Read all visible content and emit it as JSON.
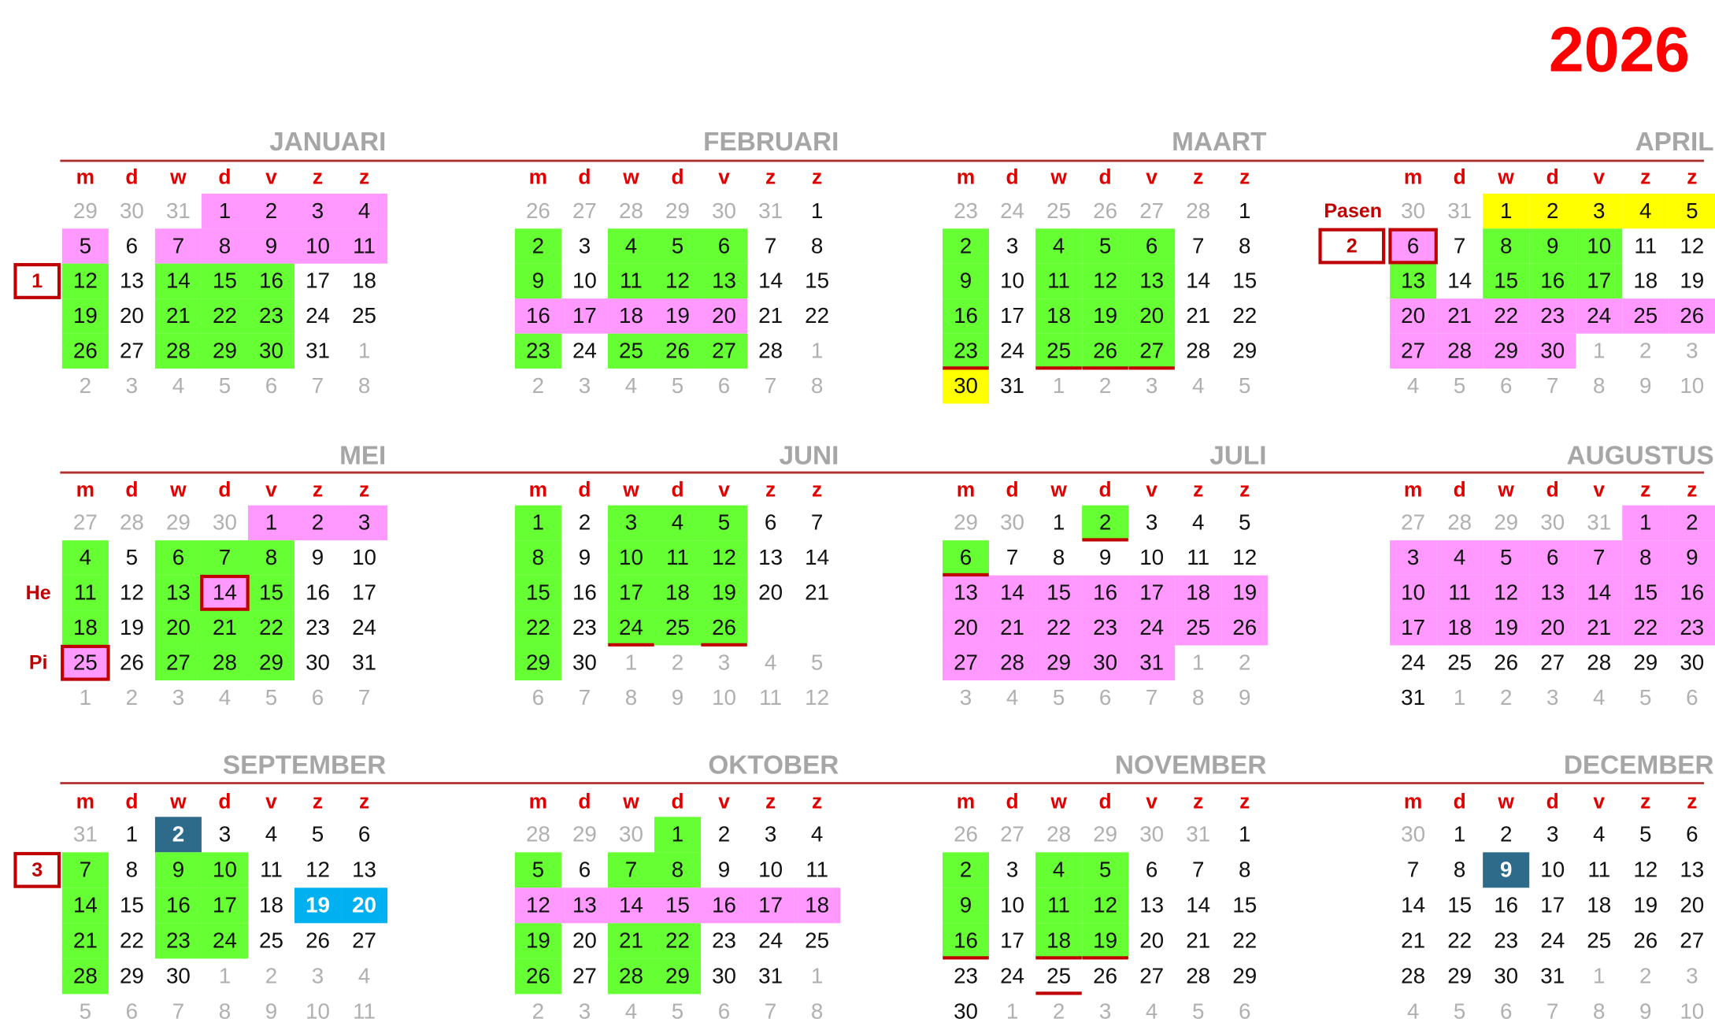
{
  "title": "2026",
  "weekdays": [
    "m",
    "d",
    "w",
    "d",
    "v",
    "z",
    "z"
  ],
  "months": [
    {
      "name": "JANUARI",
      "weeks": [
        [
          29,
          30,
          31,
          1,
          2,
          3,
          4
        ],
        [
          5,
          6,
          7,
          8,
          9,
          10,
          11
        ],
        [
          12,
          13,
          14,
          15,
          16,
          17,
          18
        ],
        [
          19,
          20,
          21,
          22,
          23,
          24,
          25
        ],
        [
          26,
          27,
          28,
          29,
          30,
          31,
          1
        ],
        [
          2,
          3,
          4,
          5,
          6,
          7,
          8
        ]
      ]
    },
    {
      "name": "FEBRUARI",
      "weeks": [
        [
          26,
          27,
          28,
          29,
          30,
          31,
          1
        ],
        [
          2,
          3,
          4,
          5,
          6,
          7,
          8
        ],
        [
          9,
          10,
          11,
          12,
          13,
          14,
          15
        ],
        [
          16,
          17,
          18,
          19,
          20,
          21,
          22
        ],
        [
          23,
          24,
          25,
          26,
          27,
          28,
          1
        ],
        [
          2,
          3,
          4,
          5,
          6,
          7,
          8
        ]
      ]
    },
    {
      "name": "MAART",
      "weeks": [
        [
          23,
          24,
          25,
          26,
          27,
          28,
          1
        ],
        [
          2,
          3,
          4,
          5,
          6,
          7,
          8
        ],
        [
          9,
          10,
          11,
          12,
          13,
          14,
          15
        ],
        [
          16,
          17,
          18,
          19,
          20,
          21,
          22
        ],
        [
          23,
          24,
          25,
          26,
          27,
          28,
          29
        ],
        [
          30,
          31,
          1,
          2,
          3,
          4,
          5
        ]
      ]
    },
    {
      "name": "APRIL",
      "weeks": [
        [
          30,
          31,
          1,
          2,
          3,
          4,
          5
        ],
        [
          6,
          7,
          8,
          9,
          10,
          11,
          12
        ],
        [
          13,
          14,
          15,
          16,
          17,
          18,
          19
        ],
        [
          20,
          21,
          22,
          23,
          24,
          25,
          26
        ],
        [
          27,
          28,
          29,
          30,
          1,
          2,
          3
        ],
        [
          4,
          5,
          6,
          7,
          8,
          9,
          10
        ]
      ]
    },
    {
      "name": "MEI",
      "weeks": [
        [
          27,
          28,
          29,
          30,
          1,
          2,
          3
        ],
        [
          4,
          5,
          6,
          7,
          8,
          9,
          10
        ],
        [
          11,
          12,
          13,
          14,
          15,
          16,
          17
        ],
        [
          18,
          19,
          20,
          21,
          22,
          23,
          24
        ],
        [
          25,
          26,
          27,
          28,
          29,
          30,
          31
        ],
        [
          1,
          2,
          3,
          4,
          5,
          6,
          7
        ]
      ]
    },
    {
      "name": "JUNI",
      "weeks": [
        [
          1,
          2,
          3,
          4,
          5,
          6,
          7
        ],
        [
          8,
          9,
          10,
          11,
          12,
          13,
          14
        ],
        [
          15,
          16,
          17,
          18,
          19,
          20,
          21
        ],
        [
          22,
          23,
          24,
          25,
          26,
          null,
          null
        ],
        [
          29,
          30,
          1,
          2,
          3,
          4,
          5
        ],
        [
          6,
          7,
          8,
          9,
          10,
          11,
          12
        ]
      ]
    },
    {
      "name": "JULI",
      "weeks": [
        [
          29,
          30,
          1,
          2,
          3,
          4,
          5
        ],
        [
          6,
          7,
          8,
          9,
          10,
          11,
          12
        ],
        [
          13,
          14,
          15,
          16,
          17,
          18,
          19
        ],
        [
          20,
          21,
          22,
          23,
          24,
          25,
          26
        ],
        [
          27,
          28,
          29,
          30,
          31,
          1,
          2
        ],
        [
          3,
          4,
          5,
          6,
          7,
          8,
          9
        ]
      ]
    },
    {
      "name": "AUGUSTUS",
      "weeks": [
        [
          27,
          28,
          29,
          30,
          31,
          1,
          2
        ],
        [
          3,
          4,
          5,
          6,
          7,
          8,
          9
        ],
        [
          10,
          11,
          12,
          13,
          14,
          15,
          16
        ],
        [
          17,
          18,
          19,
          20,
          21,
          22,
          23
        ],
        [
          24,
          25,
          26,
          27,
          28,
          29,
          30
        ],
        [
          31,
          1,
          2,
          3,
          4,
          5,
          6
        ]
      ]
    },
    {
      "name": "SEPTEMBER",
      "weeks": [
        [
          31,
          1,
          2,
          3,
          4,
          5,
          6
        ],
        [
          7,
          8,
          9,
          10,
          11,
          12,
          13
        ],
        [
          14,
          15,
          16,
          17,
          18,
          19,
          20
        ],
        [
          21,
          22,
          23,
          24,
          25,
          26,
          27
        ],
        [
          28,
          29,
          30,
          1,
          2,
          3,
          4
        ],
        [
          5,
          6,
          7,
          8,
          9,
          10,
          11
        ]
      ]
    },
    {
      "name": "OKTOBER",
      "weeks": [
        [
          28,
          29,
          30,
          1,
          2,
          3,
          4
        ],
        [
          5,
          6,
          7,
          8,
          9,
          10,
          11
        ],
        [
          12,
          13,
          14,
          15,
          16,
          17,
          18
        ],
        [
          19,
          20,
          21,
          22,
          23,
          24,
          25
        ],
        [
          26,
          27,
          28,
          29,
          30,
          31,
          1
        ],
        [
          2,
          3,
          4,
          5,
          6,
          7,
          8
        ]
      ]
    },
    {
      "name": "NOVEMBER",
      "weeks": [
        [
          26,
          27,
          28,
          29,
          30,
          31,
          1
        ],
        [
          2,
          3,
          4,
          5,
          6,
          7,
          8
        ],
        [
          9,
          10,
          11,
          12,
          13,
          14,
          15
        ],
        [
          16,
          17,
          18,
          19,
          20,
          21,
          22
        ],
        [
          23,
          24,
          25,
          26,
          27,
          28,
          29
        ],
        [
          30,
          1,
          2,
          3,
          4,
          5,
          6
        ]
      ]
    },
    {
      "name": "DECEMBER",
      "weeks": [
        [
          30,
          1,
          2,
          3,
          4,
          5,
          6
        ],
        [
          7,
          8,
          9,
          10,
          11,
          12,
          13
        ],
        [
          14,
          15,
          16,
          17,
          18,
          19,
          20
        ],
        [
          21,
          22,
          23,
          24,
          25,
          26,
          27
        ],
        [
          28,
          29,
          30,
          31,
          1,
          2,
          3
        ],
        [
          4,
          5,
          6,
          7,
          8,
          9,
          10
        ]
      ]
    }
  ],
  "week_markers": [
    1,
    2,
    3
  ],
  "holiday_labels": [
    "Pasen",
    "He",
    "Pi"
  ]
}
